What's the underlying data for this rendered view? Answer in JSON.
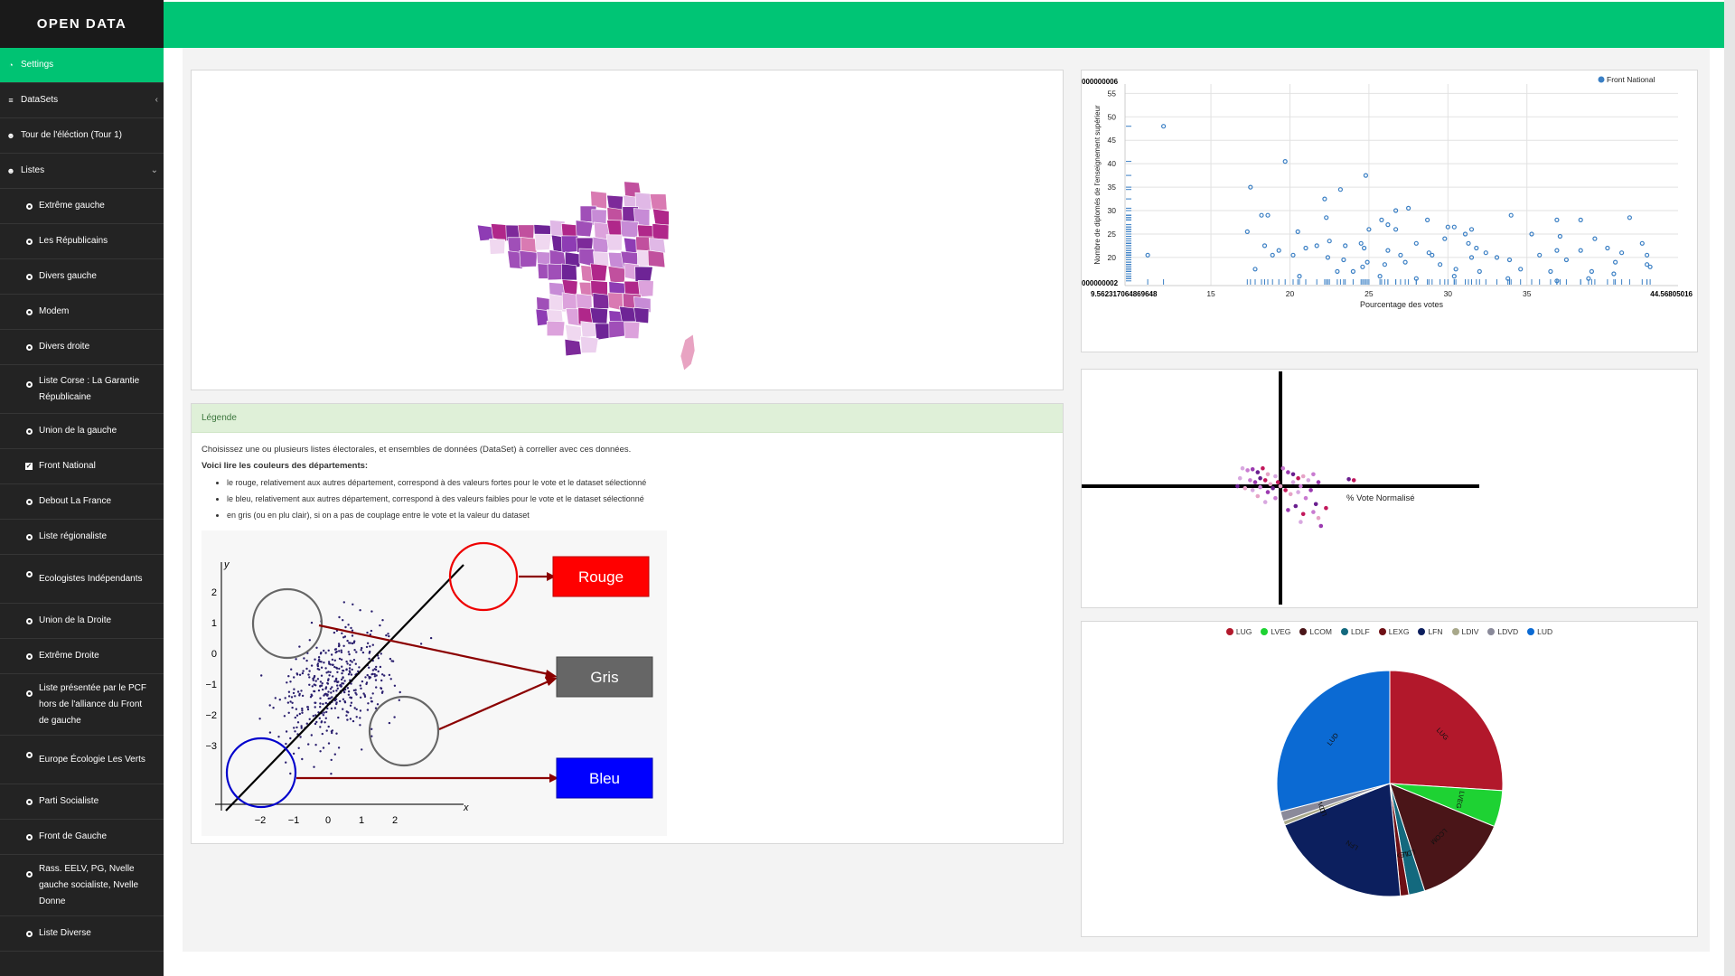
{
  "app": {
    "brand": "OPEN DATA"
  },
  "sidebar": {
    "top": [
      {
        "label": "Settings",
        "icon": "dashboard-icon",
        "active": true
      },
      {
        "label": "DataSets",
        "icon": "database-icon"
      },
      {
        "label": "Tour de l'éléction (Tour 1)",
        "icon": "users-icon"
      },
      {
        "label": "Listes",
        "icon": "users-icon"
      }
    ],
    "lists": [
      {
        "label": "Extrême gauche"
      },
      {
        "label": "Les Républicains"
      },
      {
        "label": "Divers gauche"
      },
      {
        "label": "Modem"
      },
      {
        "label": "Divers droite"
      },
      {
        "label": "Liste Corse : La Garantie Républicaine"
      },
      {
        "label": "Union de la gauche"
      },
      {
        "label": "Front National",
        "checked": true
      },
      {
        "label": "Debout La France"
      },
      {
        "label": "Liste régionaliste"
      },
      {
        "label": "Ecologistes Indépendants"
      },
      {
        "label": "Union de la Droite"
      },
      {
        "label": "Extrême Droite"
      },
      {
        "label": "Liste présentée par le PCF hors de l'alliance du Front de gauche"
      },
      {
        "label": "Europe Écologie Les Verts"
      },
      {
        "label": "Parti Socialiste"
      },
      {
        "label": "Front de Gauche"
      },
      {
        "label": "Rass. EELV, PG, Nvelle gauche socialiste, Nvelle Donne"
      },
      {
        "label": "Liste Diverse"
      }
    ]
  },
  "legend": {
    "header": "Légende",
    "intro": "Choisissez une ou plusieurs listes électorales, et ensembles de données (DataSet) à correller avec ces données.",
    "howto": "Voici lire les couleurs des départements:",
    "bullets": [
      "le rouge, relativement aux autres département, correspond à des valeurs fortes pour le vote et le dataset sélectionné",
      "le bleu, relativement aux autres département, correspond à des valeurs faibles pour le vote et le dataset sélectionné",
      "en gris (ou en plu clair), si on a pas de couplage entre le vote et la valeur du dataset"
    ],
    "figure": {
      "labels": {
        "rouge": "Rouge",
        "gris": "Gris",
        "bleu": "Bleu",
        "x": "x",
        "y": "y"
      },
      "xticks": [
        "−2",
        "−1",
        "0",
        "1",
        "2"
      ],
      "yticks": [
        "2",
        "1",
        "0",
        "−1",
        "−2",
        "−3"
      ],
      "colors": {
        "rouge": "#ff0000",
        "gris": "#666666",
        "bleu": "#0000ff",
        "arrow": "#8b0000"
      }
    }
  },
  "chart_data": [
    {
      "type": "scatter",
      "legend": [
        "Front National"
      ],
      "legend_position": "top-right",
      "xlabel": "Pourcentage des votes",
      "ylabel": "Nombre de diplomés de l'enseignement supérieur",
      "xlim": [
        9.562317064869648,
        44.568050168
      ],
      "ylim": [
        14,
        57
      ],
      "xticks": [
        15,
        20,
        25,
        30,
        35
      ],
      "yticks": [
        20,
        25,
        30,
        35,
        40,
        45,
        50,
        55
      ],
      "x_min_label": "9.562317064869648",
      "x_max_label": "44.56805016",
      "y_max_label": "000000006",
      "y_min_label": "000000002",
      "grid": true,
      "color": "#3a7fc4",
      "points": [
        [
          12.0,
          48
        ],
        [
          17.5,
          35
        ],
        [
          19.7,
          40.5
        ],
        [
          23.2,
          34.5
        ],
        [
          22.2,
          32.5
        ],
        [
          24.8,
          37.5
        ],
        [
          27.5,
          30.5
        ],
        [
          26.7,
          30
        ],
        [
          28.7,
          28
        ],
        [
          18.2,
          29
        ],
        [
          18.6,
          29
        ],
        [
          22.3,
          28.5
        ],
        [
          25.8,
          28
        ],
        [
          34.0,
          29
        ],
        [
          36.9,
          28
        ],
        [
          38.4,
          28
        ],
        [
          41.5,
          28.5
        ],
        [
          30.0,
          26.5
        ],
        [
          30.4,
          26.5
        ],
        [
          31.5,
          26
        ],
        [
          26.2,
          27
        ],
        [
          17.3,
          25.5
        ],
        [
          20.5,
          25.5
        ],
        [
          25.0,
          26
        ],
        [
          26.7,
          26
        ],
        [
          31.1,
          25
        ],
        [
          35.3,
          25
        ],
        [
          37.1,
          24.5
        ],
        [
          39.3,
          24
        ],
        [
          42.3,
          23
        ],
        [
          22.5,
          23.5
        ],
        [
          23.5,
          22.5
        ],
        [
          24.5,
          23
        ],
        [
          28.0,
          23
        ],
        [
          29.8,
          24
        ],
        [
          31.3,
          23
        ],
        [
          21.7,
          22.5
        ],
        [
          21.0,
          22
        ],
        [
          19.3,
          21.5
        ],
        [
          18.9,
          20.5
        ],
        [
          24.7,
          22
        ],
        [
          26.2,
          21.5
        ],
        [
          27.0,
          20.5
        ],
        [
          28.8,
          21
        ],
        [
          29.0,
          20.5
        ],
        [
          31.8,
          22
        ],
        [
          32.4,
          21
        ],
        [
          33.1,
          20
        ],
        [
          36.9,
          21.5
        ],
        [
          38.4,
          21.5
        ],
        [
          40.1,
          22
        ],
        [
          41.0,
          21
        ],
        [
          42.6,
          20.5
        ],
        [
          11.0,
          20.5
        ],
        [
          18.4,
          22.5
        ],
        [
          20.2,
          20.5
        ],
        [
          22.4,
          20
        ],
        [
          23.4,
          19.5
        ],
        [
          24.9,
          19
        ],
        [
          26.0,
          18.5
        ],
        [
          27.3,
          19
        ],
        [
          29.5,
          18.5
        ],
        [
          31.5,
          20
        ],
        [
          33.9,
          19.5
        ],
        [
          35.8,
          20.5
        ],
        [
          37.5,
          19.5
        ],
        [
          40.6,
          19
        ],
        [
          42.6,
          18.5
        ],
        [
          17.8,
          17.5
        ],
        [
          23.0,
          17
        ],
        [
          24.0,
          17
        ],
        [
          24.6,
          18
        ],
        [
          30.5,
          17.5
        ],
        [
          32.0,
          17
        ],
        [
          34.6,
          17.5
        ],
        [
          36.5,
          17
        ],
        [
          39.1,
          17
        ],
        [
          40.5,
          16.5
        ],
        [
          42.8,
          18
        ],
        [
          20.6,
          16
        ],
        [
          25.7,
          16
        ],
        [
          28.0,
          15.5
        ],
        [
          30.4,
          16
        ],
        [
          33.8,
          15.5
        ],
        [
          36.9,
          15
        ],
        [
          38.9,
          15.5
        ]
      ]
    },
    {
      "type": "scatter",
      "xlabel": "% Vote Normalisé",
      "ylabel": "",
      "xlim": [
        -4,
        4
      ],
      "ylim": [
        -4,
        4
      ],
      "points": [
        [
          -1.5,
          0.9
        ],
        [
          -1.3,
          0.8
        ],
        [
          -1.1,
          0.85
        ],
        [
          -0.9,
          0.7
        ],
        [
          -0.7,
          0.9
        ],
        [
          -0.5,
          0.6
        ],
        [
          -1.6,
          0.4
        ],
        [
          -1.2,
          0.3
        ],
        [
          -1.0,
          0.2
        ],
        [
          -0.8,
          0.4
        ],
        [
          -0.6,
          0.3
        ],
        [
          -0.4,
          0.1
        ],
        [
          -0.2,
          0.5
        ],
        [
          0.1,
          0.9
        ],
        [
          0.3,
          0.7
        ],
        [
          0.5,
          0.6
        ],
        [
          0.7,
          0.4
        ],
        [
          0.9,
          0.5
        ],
        [
          1.1,
          0.3
        ],
        [
          1.3,
          0.6
        ],
        [
          1.5,
          0.2
        ],
        [
          2.7,
          0.35
        ],
        [
          2.9,
          0.3
        ],
        [
          -1.4,
          -0.1
        ],
        [
          -1.1,
          -0.2
        ],
        [
          -0.8,
          -0.05
        ],
        [
          -0.5,
          -0.3
        ],
        [
          -0.3,
          -0.1
        ],
        [
          0.2,
          -0.2
        ],
        [
          0.4,
          -0.4
        ],
        [
          0.7,
          -0.3
        ],
        [
          1.0,
          -0.6
        ],
        [
          1.2,
          -0.2
        ],
        [
          1.4,
          -0.9
        ],
        [
          1.8,
          -1.1
        ],
        [
          -0.9,
          -0.5
        ],
        [
          -0.6,
          -0.8
        ],
        [
          -0.2,
          -0.6
        ],
        [
          0.3,
          -1.2
        ],
        [
          0.6,
          -1.0
        ],
        [
          0.9,
          -1.4
        ],
        [
          1.5,
          -1.6
        ],
        [
          0.8,
          -1.8
        ],
        [
          1.3,
          -1.3
        ],
        [
          1.6,
          -2.0
        ],
        [
          -1.7,
          0.0
        ],
        [
          -0.1,
          0.2
        ],
        [
          0.0,
          0.0
        ],
        [
          0.5,
          0.2
        ],
        [
          0.8,
          0.0
        ]
      ],
      "colors": [
        "#d8a8e0",
        "#c97bd1",
        "#9b3ab0",
        "#6a1f8f",
        "#c2185b",
        "#e6a3c7"
      ]
    },
    {
      "type": "pie",
      "legend_position": "top",
      "slices": [
        {
          "name": "LUG",
          "value": 26.0,
          "color": "#b2182b"
        },
        {
          "name": "LVEG",
          "value": 5.2,
          "color": "#1ed233"
        },
        {
          "name": "LCOM",
          "value": 13.8,
          "color": "#4a1518"
        },
        {
          "name": "LDLF",
          "value": 2.3,
          "color": "#13697e"
        },
        {
          "name": "LEXG",
          "value": 1.2,
          "color": "#6e1015"
        },
        {
          "name": "LFN",
          "value": 20.5,
          "color": "#0c1f5e"
        },
        {
          "name": "LDIV",
          "value": 0.6,
          "color": "#a8a88a"
        },
        {
          "name": "LDVD",
          "value": 1.4,
          "color": "#8a8a9a"
        },
        {
          "name": "LUD",
          "value": 29.0,
          "color": "#0b6ad3"
        }
      ]
    }
  ]
}
